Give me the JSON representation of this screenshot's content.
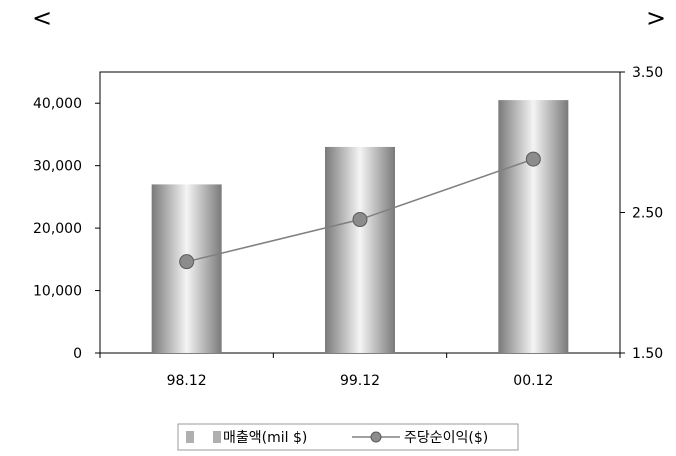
{
  "nav": {
    "prev_label": "<",
    "next_label": ">"
  },
  "colors": {
    "bar_dark": "#7a7a7a",
    "bar_light": "#f4f4f4",
    "line": "#808080",
    "marker": "#8c8c8c",
    "marker_stroke": "#5a5a5a",
    "axis": "#000000"
  },
  "chart_data": {
    "type": "bar",
    "categories": [
      "98.12",
      "99.12",
      "00.12"
    ],
    "series": [
      {
        "name": "매출액(mil $)",
        "type": "bar",
        "axis": "left",
        "values": [
          27000,
          33000,
          40500
        ]
      },
      {
        "name": "주당순이익($)",
        "type": "line",
        "axis": "right",
        "values": [
          2.15,
          2.45,
          2.88
        ]
      }
    ],
    "y_left": {
      "min": 0,
      "max": 45000,
      "ticks": [
        0,
        10000,
        20000,
        30000,
        40000
      ],
      "tick_labels": [
        "0",
        "10,000",
        "20,000",
        "30,000",
        "40,000"
      ]
    },
    "y_right": {
      "min": 1.5,
      "max": 3.5,
      "ticks": [
        1.5,
        2.5,
        3.5
      ],
      "tick_labels": [
        "1.50",
        "2.50",
        "3.50"
      ]
    },
    "grid": false,
    "legend_position": "bottom"
  }
}
